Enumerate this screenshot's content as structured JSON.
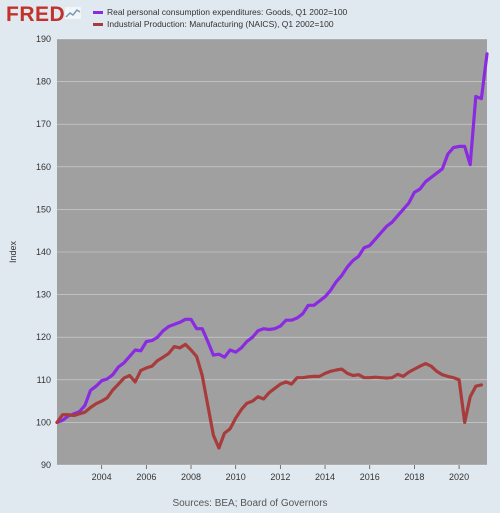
{
  "app": {
    "logo": "FRED",
    "source": "Sources: BEA; Board of Governors"
  },
  "chart_data": {
    "type": "line",
    "ylabel": "Index",
    "xlabel": "",
    "title": "",
    "ylim": [
      90,
      190
    ],
    "yticks": [
      90,
      100,
      110,
      120,
      130,
      140,
      150,
      160,
      170,
      180,
      190
    ],
    "xlim": [
      2002.0,
      2021.25
    ],
    "xticks": [
      2004,
      2006,
      2008,
      2010,
      2012,
      2014,
      2016,
      2018,
      2020
    ],
    "grid": "horizontal",
    "background": "#a0a0a0",
    "legend_placement": "top",
    "series": [
      {
        "name": "Real personal consumption expenditures: Goods, Q1 2002=100",
        "color": "#8a2be2",
        "points": [
          [
            2002.0,
            100.0
          ],
          [
            2002.25,
            100.5
          ],
          [
            2002.5,
            101.5
          ],
          [
            2002.75,
            102.0
          ],
          [
            2003.0,
            102.5
          ],
          [
            2003.25,
            104.0
          ],
          [
            2003.5,
            107.5
          ],
          [
            2003.75,
            108.5
          ],
          [
            2004.0,
            109.8
          ],
          [
            2004.25,
            110.2
          ],
          [
            2004.5,
            111.2
          ],
          [
            2004.75,
            113.0
          ],
          [
            2005.0,
            114.0
          ],
          [
            2005.25,
            115.5
          ],
          [
            2005.5,
            117.0
          ],
          [
            2005.75,
            116.8
          ],
          [
            2006.0,
            119.0
          ],
          [
            2006.25,
            119.2
          ],
          [
            2006.5,
            120.0
          ],
          [
            2006.75,
            121.5
          ],
          [
            2007.0,
            122.5
          ],
          [
            2007.25,
            123.0
          ],
          [
            2007.5,
            123.5
          ],
          [
            2007.75,
            124.2
          ],
          [
            2008.0,
            124.2
          ],
          [
            2008.25,
            122.0
          ],
          [
            2008.5,
            122.0
          ],
          [
            2008.75,
            119.0
          ],
          [
            2009.0,
            115.8
          ],
          [
            2009.25,
            116.0
          ],
          [
            2009.5,
            115.3
          ],
          [
            2009.75,
            117.0
          ],
          [
            2010.0,
            116.5
          ],
          [
            2010.25,
            117.5
          ],
          [
            2010.5,
            119.0
          ],
          [
            2010.75,
            120.0
          ],
          [
            2011.0,
            121.5
          ],
          [
            2011.25,
            122.0
          ],
          [
            2011.5,
            121.8
          ],
          [
            2011.75,
            122.0
          ],
          [
            2012.0,
            122.6
          ],
          [
            2012.25,
            124.0
          ],
          [
            2012.5,
            124.0
          ],
          [
            2012.75,
            124.5
          ],
          [
            2013.0,
            125.5
          ],
          [
            2013.25,
            127.5
          ],
          [
            2013.5,
            127.5
          ],
          [
            2013.75,
            128.5
          ],
          [
            2014.0,
            129.5
          ],
          [
            2014.25,
            131.0
          ],
          [
            2014.5,
            133.0
          ],
          [
            2014.75,
            134.5
          ],
          [
            2015.0,
            136.5
          ],
          [
            2015.25,
            138.0
          ],
          [
            2015.5,
            139.0
          ],
          [
            2015.75,
            141.0
          ],
          [
            2016.0,
            141.5
          ],
          [
            2016.25,
            143.0
          ],
          [
            2016.5,
            144.5
          ],
          [
            2016.75,
            146.0
          ],
          [
            2017.0,
            147.0
          ],
          [
            2017.25,
            148.5
          ],
          [
            2017.5,
            150.0
          ],
          [
            2017.75,
            151.5
          ],
          [
            2018.0,
            154.0
          ],
          [
            2018.25,
            154.8
          ],
          [
            2018.5,
            156.5
          ],
          [
            2018.75,
            157.5
          ],
          [
            2019.0,
            158.5
          ],
          [
            2019.25,
            159.5
          ],
          [
            2019.5,
            163.0
          ],
          [
            2019.75,
            164.5
          ],
          [
            2020.0,
            164.8
          ],
          [
            2020.25,
            164.8
          ],
          [
            2020.5,
            160.5
          ],
          [
            2020.75,
            176.5
          ],
          [
            2021.0,
            176.0
          ],
          [
            2021.25,
            186.5
          ]
        ]
      },
      {
        "name": "Industrial Production: Manufacturing (NAICS), Q1 2002=100",
        "color": "#a83c3c",
        "points": [
          [
            2002.0,
            100.0
          ],
          [
            2002.25,
            101.8
          ],
          [
            2002.5,
            101.8
          ],
          [
            2002.75,
            101.6
          ],
          [
            2003.0,
            102.0
          ],
          [
            2003.25,
            102.4
          ],
          [
            2003.5,
            103.5
          ],
          [
            2003.75,
            104.4
          ],
          [
            2004.0,
            105.0
          ],
          [
            2004.25,
            105.8
          ],
          [
            2004.5,
            107.6
          ],
          [
            2004.75,
            109.0
          ],
          [
            2005.0,
            110.4
          ],
          [
            2005.25,
            111.0
          ],
          [
            2005.5,
            109.5
          ],
          [
            2005.75,
            112.2
          ],
          [
            2006.0,
            112.8
          ],
          [
            2006.25,
            113.2
          ],
          [
            2006.5,
            114.5
          ],
          [
            2006.75,
            115.3
          ],
          [
            2007.0,
            116.2
          ],
          [
            2007.25,
            117.8
          ],
          [
            2007.5,
            117.5
          ],
          [
            2007.75,
            118.3
          ],
          [
            2008.0,
            117.0
          ],
          [
            2008.25,
            115.5
          ],
          [
            2008.5,
            111.0
          ],
          [
            2008.75,
            104.0
          ],
          [
            2009.0,
            97.0
          ],
          [
            2009.25,
            94.0
          ],
          [
            2009.5,
            97.5
          ],
          [
            2009.75,
            98.5
          ],
          [
            2010.0,
            101.0
          ],
          [
            2010.25,
            103.0
          ],
          [
            2010.5,
            104.5
          ],
          [
            2010.75,
            105.0
          ],
          [
            2011.0,
            106.0
          ],
          [
            2011.25,
            105.5
          ],
          [
            2011.5,
            107.0
          ],
          [
            2011.75,
            108.0
          ],
          [
            2012.0,
            109.0
          ],
          [
            2012.25,
            109.5
          ],
          [
            2012.5,
            109.0
          ],
          [
            2012.75,
            110.5
          ],
          [
            2013.0,
            110.5
          ],
          [
            2013.25,
            110.7
          ],
          [
            2013.5,
            110.8
          ],
          [
            2013.75,
            110.8
          ],
          [
            2014.0,
            111.5
          ],
          [
            2014.25,
            112.0
          ],
          [
            2014.5,
            112.3
          ],
          [
            2014.75,
            112.5
          ],
          [
            2015.0,
            111.5
          ],
          [
            2015.25,
            111.0
          ],
          [
            2015.5,
            111.2
          ],
          [
            2015.75,
            110.5
          ],
          [
            2016.0,
            110.5
          ],
          [
            2016.25,
            110.6
          ],
          [
            2016.5,
            110.5
          ],
          [
            2016.75,
            110.4
          ],
          [
            2017.0,
            110.5
          ],
          [
            2017.25,
            111.3
          ],
          [
            2017.5,
            110.8
          ],
          [
            2017.75,
            111.8
          ],
          [
            2018.0,
            112.5
          ],
          [
            2018.25,
            113.2
          ],
          [
            2018.5,
            113.8
          ],
          [
            2018.75,
            113.2
          ],
          [
            2019.0,
            112.0
          ],
          [
            2019.25,
            111.2
          ],
          [
            2019.5,
            110.8
          ],
          [
            2019.75,
            110.5
          ],
          [
            2020.0,
            110.0
          ],
          [
            2020.25,
            100.0
          ],
          [
            2020.5,
            106.0
          ],
          [
            2020.75,
            108.5
          ],
          [
            2021.0,
            108.8
          ]
        ]
      }
    ]
  }
}
